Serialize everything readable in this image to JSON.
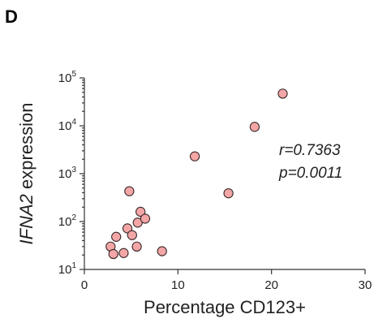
{
  "panel_label": "D",
  "colors": {
    "marker_fill": "#f4a6a6",
    "marker_edge": "#3a2a2a",
    "axis": "#333333"
  },
  "chart_data": {
    "type": "scatter",
    "title": "",
    "xlabel": "Percentage CD123+",
    "ylabel": {
      "italic_part": "IFNA2",
      "regular_part": " expression"
    },
    "xlim": [
      0,
      30
    ],
    "ylim": [
      10,
      100000
    ],
    "y_scale": "log",
    "x_ticks": [
      0,
      10,
      20,
      30
    ],
    "x_tick_labels": [
      "0",
      "10",
      "20",
      "30"
    ],
    "y_ticks": [
      10,
      100,
      1000,
      10000,
      100000
    ],
    "y_tick_labels": [
      {
        "base": "10",
        "exp": "1"
      },
      {
        "base": "10",
        "exp": "2"
      },
      {
        "base": "10",
        "exp": "3"
      },
      {
        "base": "10",
        "exp": "4"
      },
      {
        "base": "10",
        "exp": "5"
      }
    ],
    "grid": false,
    "annotations": [
      "r=0.7363",
      "p=0.0011"
    ],
    "points": [
      {
        "x": 2.8,
        "y": 30
      },
      {
        "x": 3.1,
        "y": 21
      },
      {
        "x": 3.4,
        "y": 48
      },
      {
        "x": 4.2,
        "y": 22
      },
      {
        "x": 4.6,
        "y": 72
      },
      {
        "x": 4.8,
        "y": 430
      },
      {
        "x": 5.1,
        "y": 52
      },
      {
        "x": 5.6,
        "y": 30
      },
      {
        "x": 5.7,
        "y": 95
      },
      {
        "x": 6.0,
        "y": 160
      },
      {
        "x": 6.5,
        "y": 115
      },
      {
        "x": 8.3,
        "y": 24
      },
      {
        "x": 11.8,
        "y": 2300
      },
      {
        "x": 15.4,
        "y": 390
      },
      {
        "x": 18.2,
        "y": 9500
      },
      {
        "x": 21.2,
        "y": 47000
      }
    ]
  }
}
